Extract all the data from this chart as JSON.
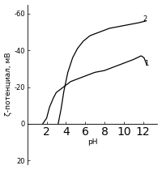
{
  "title": "",
  "xlabel": "pH",
  "ylabel": "ζ-потенциал, мВ",
  "xlim": [
    0,
    13.5
  ],
  "ylim": [
    22,
    -65
  ],
  "xticks": [
    2,
    4,
    6,
    8,
    10,
    12
  ],
  "yticks": [
    20,
    0,
    -20,
    -40,
    -60
  ],
  "ytick_labels": [
    "20",
    "0",
    "-20",
    "-40",
    "-60"
  ],
  "background_color": "#ffffff",
  "curve1_color": "#000000",
  "curve2_color": "#000000",
  "label1": "1",
  "label2": "2",
  "ph1": [
    1.6,
    2.0,
    2.3,
    2.7,
    3.0,
    3.5,
    4.0,
    4.5,
    5.0,
    6.0,
    7.0,
    8.0,
    9.0,
    10.0,
    11.0,
    11.8,
    12.1,
    12.4
  ],
  "zeta1": [
    0,
    -3,
    -9,
    -14,
    -17,
    -19,
    -21,
    -23,
    -24,
    -26,
    -28,
    -29,
    -31,
    -33,
    -35,
    -37,
    -36,
    -32
  ],
  "ph2": [
    3.2,
    3.5,
    3.8,
    4.2,
    4.7,
    5.2,
    5.8,
    6.5,
    7.5,
    8.5,
    9.5,
    10.5,
    11.5,
    12.3
  ],
  "zeta2": [
    0,
    -8,
    -18,
    -28,
    -36,
    -41,
    -45,
    -48,
    -50,
    -52,
    -53,
    -54,
    -55,
    -56
  ],
  "figsize": [
    2.0,
    2.1
  ],
  "dpi": 100,
  "tick_fontsize": 6,
  "label_fontsize": 6.5,
  "curve_linewidth": 0.9
}
